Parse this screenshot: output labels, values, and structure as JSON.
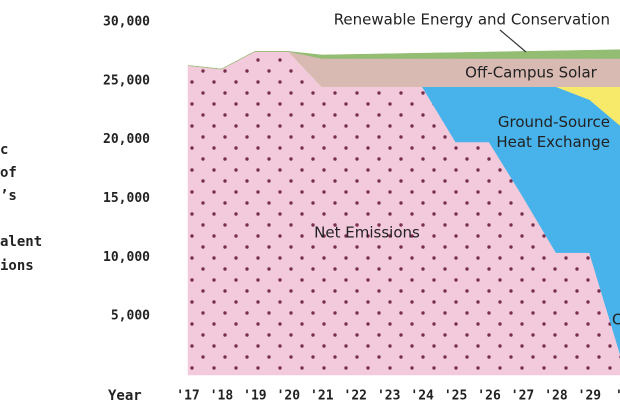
{
  "chart_data": {
    "type": "stacked_area",
    "y_label_fragments": [
      "c",
      "of",
      "’s",
      "alent",
      "ions"
    ],
    "x_label": "Year",
    "categories": [
      "'17",
      "'18",
      "'19",
      "'20",
      "'21",
      "'22",
      "'23",
      "'24",
      "'25",
      "'26",
      "'27",
      "'28",
      "'29",
      "'3"
    ],
    "series": [
      {
        "name": "Net Emissions",
        "color": "#f2cadb",
        "values": [
          26300,
          26000,
          27500,
          27500,
          24500,
          24500,
          24500,
          24500,
          19800,
          19800,
          15200,
          10400,
          10400,
          1000
        ]
      },
      {
        "name": "Ground-Source Heat Exchange",
        "color": "#48b2ea",
        "values": [
          0,
          0,
          0,
          0,
          0,
          0,
          0,
          0,
          4700,
          4700,
          9300,
          14100,
          13000,
          20000
        ]
      },
      {
        "name": "O",
        "color": "#f7ea6b",
        "values": [
          0,
          0,
          0,
          0,
          0,
          0,
          0,
          0,
          0,
          0,
          0,
          0,
          1100,
          3500
        ]
      },
      {
        "name": "Off-Campus Solar",
        "color": "#d9bab3",
        "values": [
          0,
          0,
          0,
          0,
          2400,
          2400,
          2400,
          2400,
          2400,
          2400,
          2400,
          2400,
          2400,
          2400
        ]
      },
      {
        "name": "Renewable Energy and Conservation",
        "color": "#92bd72",
        "values": [
          0,
          0,
          0,
          0,
          300,
          350,
          400,
          450,
          500,
          550,
          600,
          650,
          700,
          750
        ]
      }
    ],
    "ylim": [
      0,
      30000
    ],
    "yticks": [
      {
        "value": 5000,
        "label": "5,000"
      },
      {
        "value": 10000,
        "label": "10,000"
      },
      {
        "value": 15000,
        "label": "15,000"
      },
      {
        "value": 20000,
        "label": "20,000"
      },
      {
        "value": 25000,
        "label": "25,000"
      },
      {
        "value": 30000,
        "label": "30,000"
      }
    ]
  }
}
